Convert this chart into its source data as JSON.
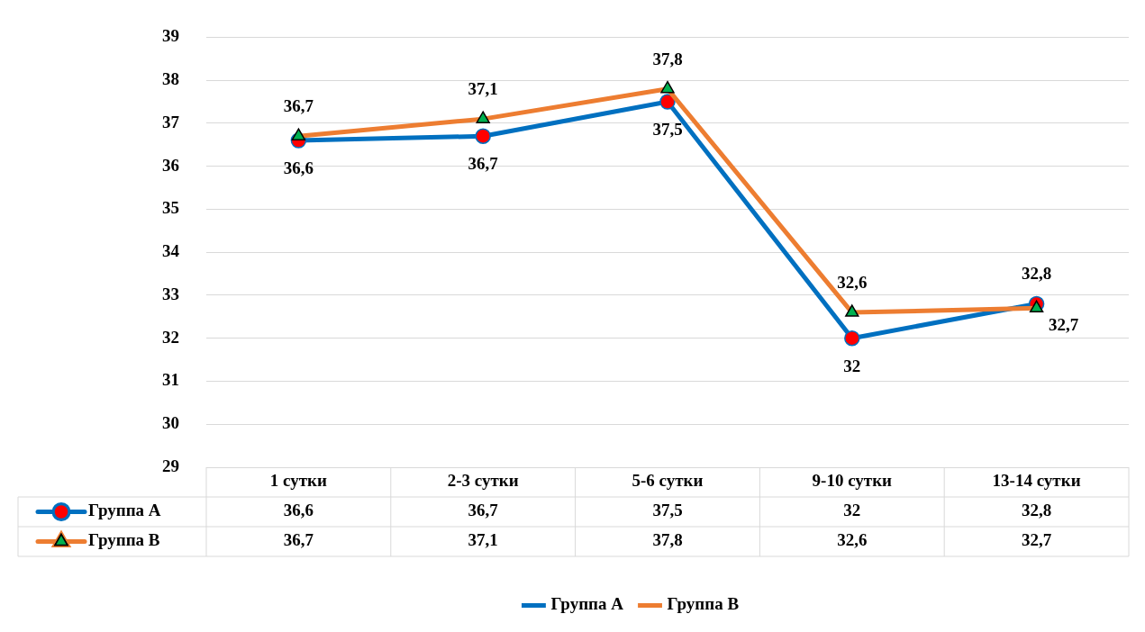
{
  "chart_data": {
    "type": "line",
    "categories": [
      "1 сутки",
      "2-3 сутки",
      "5-6 сутки",
      "9-10 сутки",
      "13-14 сутки"
    ],
    "series": [
      {
        "name": "Группа А",
        "color": "#0070c0",
        "marker": "circle",
        "values": [
          36.6,
          36.7,
          37.5,
          32,
          32.8
        ],
        "value_labels": [
          "36,6",
          "36,7",
          "37,5",
          "32",
          "32,8"
        ]
      },
      {
        "name": "Группа В",
        "color": "#ed7d31",
        "marker": "triangle",
        "values": [
          36.7,
          37.1,
          37.8,
          32.6,
          32.7
        ],
        "value_labels": [
          "36,7",
          "37,1",
          "37,8",
          "32,6",
          "32,7"
        ]
      }
    ],
    "ylim": [
      29,
      39
    ],
    "yticks": [
      29,
      30,
      31,
      32,
      33,
      34,
      35,
      36,
      37,
      38,
      39
    ],
    "grid": "y",
    "legend": "bottom",
    "line_style": "solid"
  }
}
